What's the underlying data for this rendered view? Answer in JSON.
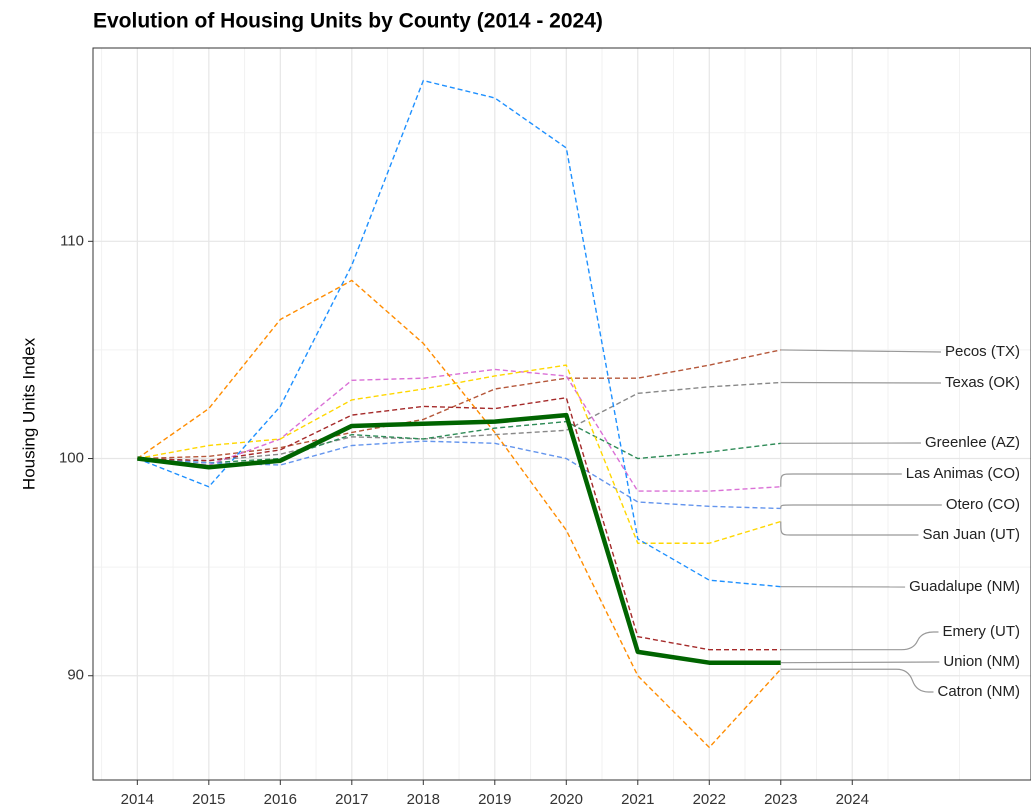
{
  "chart_data": {
    "type": "line",
    "title": "Evolution of Housing Units by County (2014 - 2024)",
    "y_label": "Housing Units Index",
    "x": [
      2014,
      2015,
      2016,
      2017,
      2018,
      2019,
      2020,
      2021,
      2022,
      2023
    ],
    "xlim": [
      2013.38,
      2026.5
    ],
    "xticks": [
      2014,
      2015,
      2016,
      2017,
      2018,
      2019,
      2020,
      2021,
      2022,
      2023,
      2024
    ],
    "ylim": [
      85.2,
      118.9
    ],
    "yticks": [
      90,
      100,
      110
    ],
    "grid": true,
    "series": [
      {
        "name": "Pecos (TX)",
        "color": "#b5573a",
        "values": [
          100,
          100.1,
          100.5,
          101.2,
          101.8,
          103.2,
          103.7,
          103.7,
          104.3,
          105.0
        ]
      },
      {
        "name": "Texas (OK)",
        "color": "#888888",
        "values": [
          100,
          99.9,
          100.2,
          101.0,
          100.9,
          101.1,
          101.3,
          103.0,
          103.3,
          103.5
        ]
      },
      {
        "name": "Greenlee (AZ)",
        "color": "#2e8b57",
        "values": [
          100,
          99.8,
          100.0,
          101.1,
          100.9,
          101.4,
          101.7,
          100.0,
          100.3,
          100.7
        ]
      },
      {
        "name": "Las Animas (CO)",
        "color": "#da70d6",
        "values": [
          100,
          99.7,
          100.9,
          103.6,
          103.7,
          104.1,
          103.8,
          98.5,
          98.5,
          98.7
        ]
      },
      {
        "name": "Otero (CO)",
        "color": "#6495ed",
        "values": [
          100,
          99.8,
          99.7,
          100.6,
          100.8,
          100.7,
          100.0,
          98.0,
          97.8,
          97.7
        ]
      },
      {
        "name": "San Juan (UT)",
        "color": "#ffd700",
        "values": [
          100,
          100.6,
          100.9,
          102.7,
          103.2,
          103.8,
          104.3,
          96.1,
          96.1,
          97.1
        ]
      },
      {
        "name": "Guadalupe (NM)",
        "color": "#1e90ff",
        "values": [
          100,
          98.7,
          102.4,
          108.9,
          117.4,
          116.6,
          114.3,
          96.3,
          94.4,
          94.1
        ]
      },
      {
        "name": "Emery (UT)",
        "color": "#a52a2a",
        "values": [
          100,
          99.9,
          100.4,
          102.0,
          102.4,
          102.3,
          102.8,
          91.8,
          91.2,
          91.2
        ]
      },
      {
        "name": "Catron (NM)",
        "color": "#ff8c00",
        "values": [
          100,
          102.3,
          106.4,
          108.2,
          105.3,
          101.2,
          96.7,
          90.0,
          86.7,
          90.3
        ]
      },
      {
        "name": "Union (NM)",
        "color": "#006400",
        "values": [
          100,
          99.6,
          99.9,
          101.5,
          101.6,
          101.7,
          102.0,
          91.1,
          90.6,
          90.6
        ]
      }
    ]
  }
}
